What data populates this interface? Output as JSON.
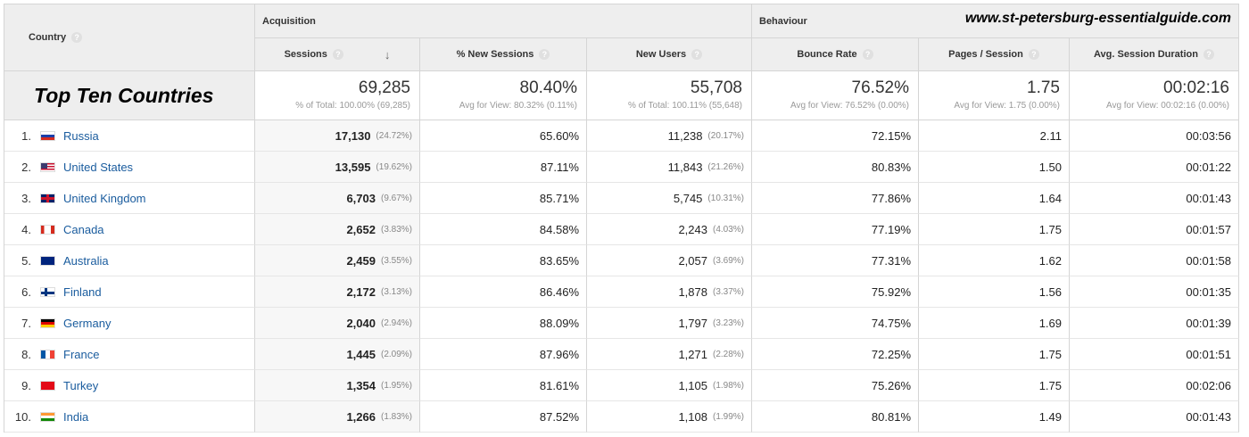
{
  "site": "www.st-petersburg-essentialguide.com",
  "title": "Top Ten Countries",
  "headers": {
    "country": "Country",
    "acquisition": "Acquisition",
    "behaviour": "Behaviour",
    "sessions": "Sessions",
    "new_sessions": "% New Sessions",
    "new_users": "New Users",
    "bounce_rate": "Bounce Rate",
    "pages_session": "Pages / Session",
    "avg_duration": "Avg. Session Duration",
    "help": "?",
    "sort_arrow": "↓"
  },
  "totals": [
    {
      "value": "69,285",
      "sub": "% of Total: 100.00% (69,285)"
    },
    {
      "value": "80.40%",
      "sub": "Avg for View: 80.32% (0.11%)"
    },
    {
      "value": "55,708",
      "sub": "% of Total: 100.11% (55,648)"
    },
    {
      "value": "76.52%",
      "sub": "Avg for View: 76.52% (0.00%)"
    },
    {
      "value": "1.75",
      "sub": "Avg for View: 1.75 (0.00%)"
    },
    {
      "value": "00:02:16",
      "sub": "Avg for View: 00:02:16 (0.00%)"
    }
  ],
  "rows": [
    {
      "idx": "1.",
      "name": "Russia",
      "flag": "ru",
      "sessions": "17,130",
      "sessions_pct": "(24.72%)",
      "new_sessions": "65.60%",
      "new_users": "11,238",
      "new_users_pct": "(20.17%)",
      "bounce": "72.15%",
      "pages": "2.11",
      "duration": "00:03:56"
    },
    {
      "idx": "2.",
      "name": "United States",
      "flag": "us",
      "sessions": "13,595",
      "sessions_pct": "(19.62%)",
      "new_sessions": "87.11%",
      "new_users": "11,843",
      "new_users_pct": "(21.26%)",
      "bounce": "80.83%",
      "pages": "1.50",
      "duration": "00:01:22"
    },
    {
      "idx": "3.",
      "name": "United Kingdom",
      "flag": "gb",
      "sessions": "6,703",
      "sessions_pct": "(9.67%)",
      "new_sessions": "85.71%",
      "new_users": "5,745",
      "new_users_pct": "(10.31%)",
      "bounce": "77.86%",
      "pages": "1.64",
      "duration": "00:01:43"
    },
    {
      "idx": "4.",
      "name": "Canada",
      "flag": "ca",
      "sessions": "2,652",
      "sessions_pct": "(3.83%)",
      "new_sessions": "84.58%",
      "new_users": "2,243",
      "new_users_pct": "(4.03%)",
      "bounce": "77.19%",
      "pages": "1.75",
      "duration": "00:01:57"
    },
    {
      "idx": "5.",
      "name": "Australia",
      "flag": "au",
      "sessions": "2,459",
      "sessions_pct": "(3.55%)",
      "new_sessions": "83.65%",
      "new_users": "2,057",
      "new_users_pct": "(3.69%)",
      "bounce": "77.31%",
      "pages": "1.62",
      "duration": "00:01:58"
    },
    {
      "idx": "6.",
      "name": "Finland",
      "flag": "fi",
      "sessions": "2,172",
      "sessions_pct": "(3.13%)",
      "new_sessions": "86.46%",
      "new_users": "1,878",
      "new_users_pct": "(3.37%)",
      "bounce": "75.92%",
      "pages": "1.56",
      "duration": "00:01:35"
    },
    {
      "idx": "7.",
      "name": "Germany",
      "flag": "de",
      "sessions": "2,040",
      "sessions_pct": "(2.94%)",
      "new_sessions": "88.09%",
      "new_users": "1,797",
      "new_users_pct": "(3.23%)",
      "bounce": "74.75%",
      "pages": "1.69",
      "duration": "00:01:39"
    },
    {
      "idx": "8.",
      "name": "France",
      "flag": "fr",
      "sessions": "1,445",
      "sessions_pct": "(2.09%)",
      "new_sessions": "87.96%",
      "new_users": "1,271",
      "new_users_pct": "(2.28%)",
      "bounce": "72.25%",
      "pages": "1.75",
      "duration": "00:01:51"
    },
    {
      "idx": "9.",
      "name": "Turkey",
      "flag": "tr",
      "sessions": "1,354",
      "sessions_pct": "(1.95%)",
      "new_sessions": "81.61%",
      "new_users": "1,105",
      "new_users_pct": "(1.98%)",
      "bounce": "75.26%",
      "pages": "1.75",
      "duration": "00:02:06"
    },
    {
      "idx": "10.",
      "name": "India",
      "flag": "in",
      "sessions": "1,266",
      "sessions_pct": "(1.83%)",
      "new_sessions": "87.52%",
      "new_users": "1,108",
      "new_users_pct": "(1.99%)",
      "bounce": "80.81%",
      "pages": "1.49",
      "duration": "00:01:43"
    }
  ]
}
